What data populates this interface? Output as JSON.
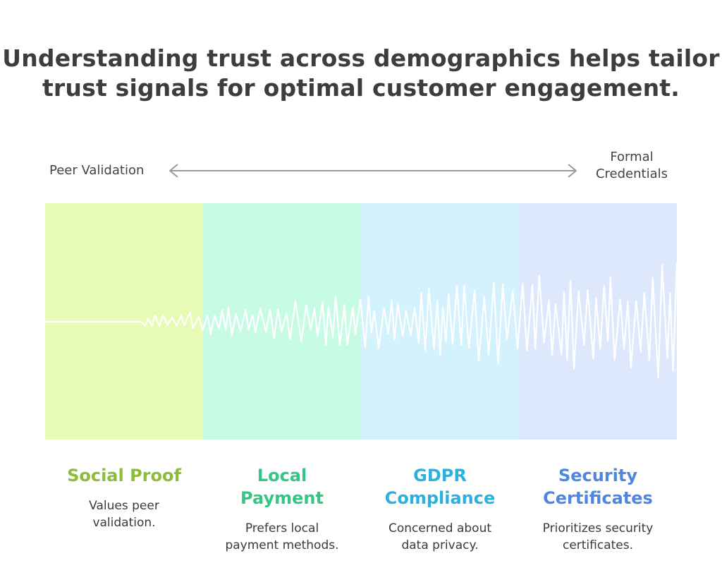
{
  "title": {
    "line1": "Understanding trust across demographics helps tailor",
    "line2": "trust signals for optimal customer engagement."
  },
  "axis": {
    "left_label": "Peer Validation",
    "right_label_line1": "Formal",
    "right_label_line2": "Credentials"
  },
  "colors": {
    "band_bg": [
      "#e7fbb5",
      "#c8fbe5",
      "#d3f2fd",
      "#dde8fd"
    ],
    "title_color": [
      "#8bbd3a",
      "#34c683",
      "#29b2e0",
      "#4e86e4"
    ],
    "arrow": "#9a9a9a",
    "wave": "#ffffff"
  },
  "segments": [
    {
      "title_line1": "Social Proof",
      "title_line2": "",
      "desc_line1": "Values peer",
      "desc_line2": "validation."
    },
    {
      "title_line1": "Local",
      "title_line2": "Payment",
      "desc_line1": "Prefers local",
      "desc_line2": "payment methods."
    },
    {
      "title_line1": "GDPR",
      "title_line2": "Compliance",
      "desc_line1": "Concerned about",
      "desc_line2": "data privacy."
    },
    {
      "title_line1": "Security",
      "title_line2": "Certificates",
      "desc_line1": "Prioritizes security",
      "desc_line2": "certificates."
    }
  ]
}
